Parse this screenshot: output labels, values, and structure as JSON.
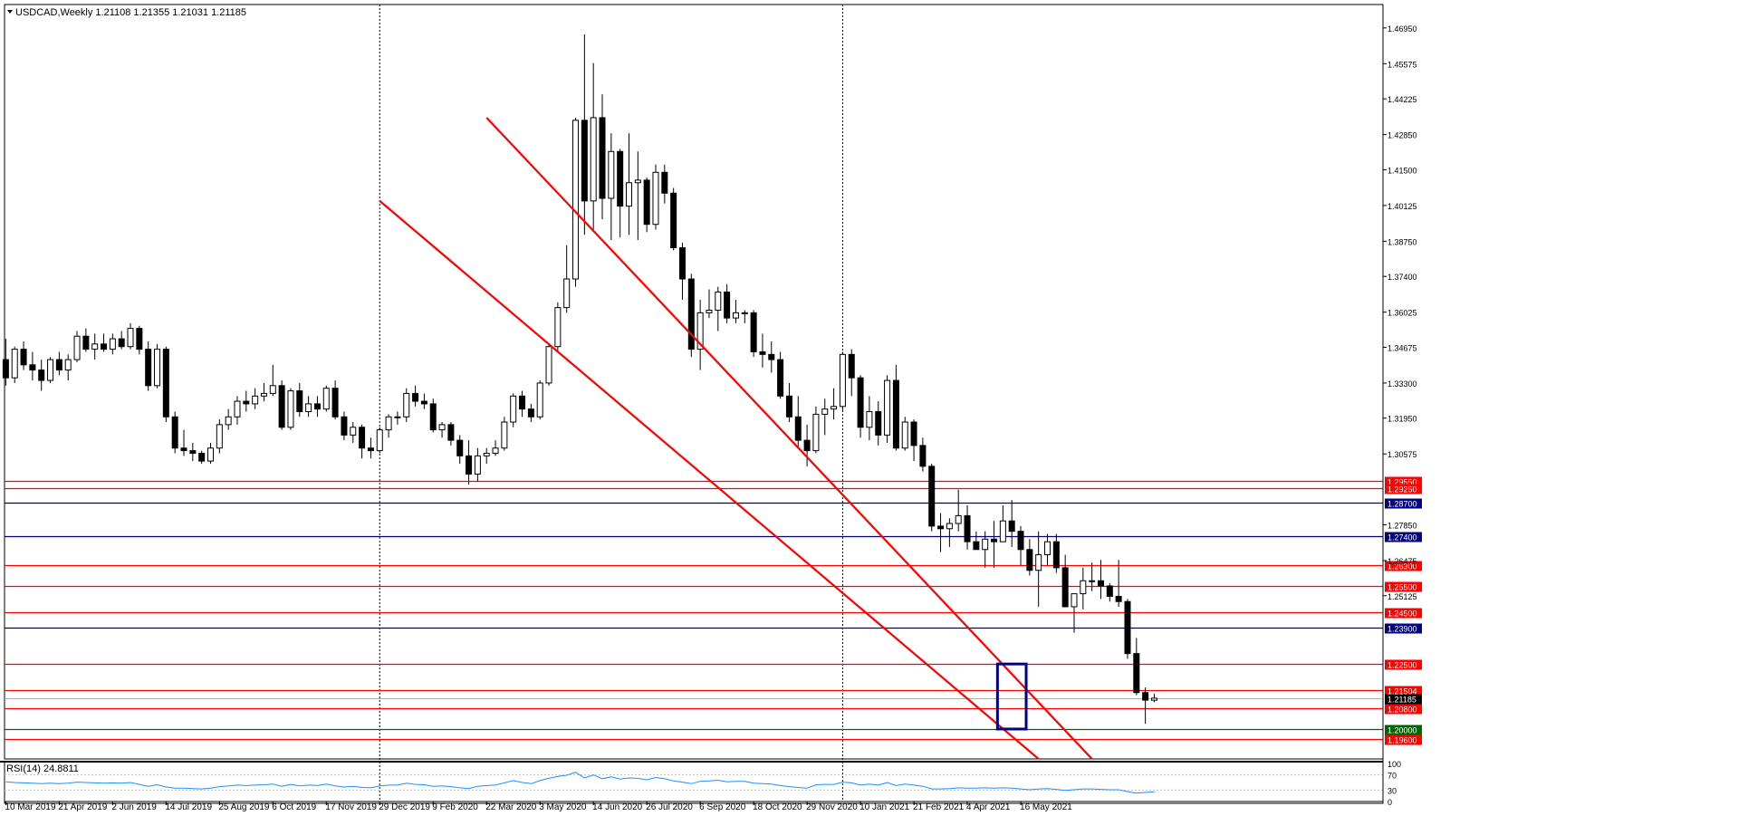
{
  "header": {
    "symbol_line": "USDCAD,Weekly  1.21108 1.21355 1.21031 1.21185"
  },
  "rsi": {
    "label": "RSI(14) 24.8811",
    "levels": [
      "100",
      "70",
      "30",
      "0"
    ]
  },
  "colors": {
    "red": "#ff0000",
    "blue": "#000080",
    "green": "#006400",
    "rsi": "#1e90ff",
    "bull": "#ffffff",
    "bear": "#000000"
  },
  "chart_data": {
    "type": "candlestick",
    "title": "USDCAD,Weekly",
    "ylim": [
      1.1885,
      1.4785
    ],
    "ylabels": [
      "1.46950",
      "1.45575",
      "1.44225",
      "1.42850",
      "1.41500",
      "1.40125",
      "1.38750",
      "1.37400",
      "1.36025",
      "1.34675",
      "1.33300",
      "1.31950",
      "1.30575",
      "1.27850",
      "1.26475",
      "1.25125"
    ],
    "xlabels": [
      "10 Mar 2019",
      "21 Apr 2019",
      "2 Jun 2019",
      "14 Jul 2019",
      "25 Aug 2019",
      "6 Oct 2019",
      "17 Nov 2019",
      "29 Dec 2019",
      "9 Feb 2020",
      "22 Mar 2020",
      "3 May 2020",
      "14 Jun 2020",
      "26 Jul 2020",
      "6 Sep 2020",
      "18 Oct 2020",
      "29 Nov 2020",
      "10 Jan 2021",
      "21 Feb 2021",
      "4 Apr 2021",
      "16 May 2021"
    ],
    "date_range": [
      "2019-03-10",
      "2021-05-16"
    ],
    "levels": [
      {
        "value": 1.2955,
        "label": "1.29550",
        "color": "red"
      },
      {
        "value": 1.2925,
        "label": "1.29250",
        "color": "red"
      },
      {
        "value": 1.287,
        "label": "1.28700",
        "color": "blue"
      },
      {
        "value": 1.274,
        "label": "1.27400",
        "color": "blue"
      },
      {
        "value": 1.263,
        "label": "1.26300",
        "color": "red"
      },
      {
        "value": 1.255,
        "label": "1.25500",
        "color": "red"
      },
      {
        "value": 1.245,
        "label": "1.24500",
        "color": "red"
      },
      {
        "value": 1.239,
        "label": "1.23900",
        "color": "blue"
      },
      {
        "value": 1.225,
        "label": "1.22500",
        "color": "red"
      },
      {
        "value": 1.215,
        "label": "1.21504",
        "color": "red"
      },
      {
        "value": 1.208,
        "label": "1.20800",
        "color": "red"
      },
      {
        "value": 1.2,
        "label": "1.20000",
        "color": "green"
      },
      {
        "value": 1.196,
        "label": "1.19600",
        "color": "red"
      }
    ],
    "current_price": {
      "value": 1.21185,
      "label": "1.21185"
    },
    "channel_lines": [
      {
        "from": {
          "date": "2020-03-22",
          "price": 1.435
        },
        "to": {
          "date": "2021-07-11",
          "price": 1.1885
        }
      },
      {
        "from": {
          "date": "2019-12-29",
          "price": 1.403
        },
        "to": {
          "date": "2021-05-30",
          "price": 1.1885
        }
      }
    ],
    "highlight_box": {
      "from": "2021-05-02",
      "to": "2021-05-16",
      "high": 1.225,
      "low": 1.2
    },
    "period_separators": [
      "2019-12-29",
      "2020-12-27"
    ],
    "candles": [
      [
        1.342,
        1.35,
        1.332,
        1.335
      ],
      [
        1.335,
        1.347,
        1.333,
        1.346
      ],
      [
        1.346,
        1.349,
        1.338,
        1.34
      ],
      [
        1.34,
        1.345,
        1.334,
        1.338
      ],
      [
        1.338,
        1.342,
        1.33,
        1.334
      ],
      [
        1.334,
        1.343,
        1.333,
        1.342
      ],
      [
        1.342,
        1.345,
        1.336,
        1.338
      ],
      [
        1.338,
        1.344,
        1.334,
        1.342
      ],
      [
        1.342,
        1.353,
        1.341,
        1.351
      ],
      [
        1.351,
        1.354,
        1.345,
        1.346
      ],
      [
        1.346,
        1.352,
        1.342,
        1.348
      ],
      [
        1.348,
        1.352,
        1.345,
        1.346
      ],
      [
        1.346,
        1.352,
        1.344,
        1.35
      ],
      [
        1.35,
        1.353,
        1.346,
        1.347
      ],
      [
        1.347,
        1.356,
        1.346,
        1.354
      ],
      [
        1.354,
        1.355,
        1.344,
        1.346
      ],
      [
        1.346,
        1.349,
        1.33,
        1.332
      ],
      [
        1.332,
        1.348,
        1.331,
        1.346
      ],
      [
        1.346,
        1.347,
        1.318,
        1.32
      ],
      [
        1.32,
        1.322,
        1.306,
        1.308
      ],
      [
        1.308,
        1.315,
        1.305,
        1.307
      ],
      [
        1.307,
        1.31,
        1.303,
        1.306
      ],
      [
        1.306,
        1.307,
        1.302,
        1.303
      ],
      [
        1.303,
        1.31,
        1.302,
        1.308
      ],
      [
        1.308,
        1.319,
        1.306,
        1.317
      ],
      [
        1.317,
        1.323,
        1.315,
        1.32
      ],
      [
        1.32,
        1.328,
        1.317,
        1.326
      ],
      [
        1.326,
        1.33,
        1.322,
        1.325
      ],
      [
        1.325,
        1.331,
        1.323,
        1.328
      ],
      [
        1.328,
        1.333,
        1.326,
        1.329
      ],
      [
        1.329,
        1.34,
        1.328,
        1.332
      ],
      [
        1.332,
        1.334,
        1.315,
        1.316
      ],
      [
        1.316,
        1.331,
        1.315,
        1.33
      ],
      [
        1.33,
        1.333,
        1.32,
        1.322
      ],
      [
        1.322,
        1.328,
        1.32,
        1.325
      ],
      [
        1.325,
        1.328,
        1.32,
        1.323
      ],
      [
        1.323,
        1.332,
        1.322,
        1.331
      ],
      [
        1.331,
        1.334,
        1.319,
        1.32
      ],
      [
        1.32,
        1.322,
        1.311,
        1.313
      ],
      [
        1.313,
        1.318,
        1.31,
        1.316
      ],
      [
        1.316,
        1.317,
        1.304,
        1.308
      ],
      [
        1.308,
        1.312,
        1.304,
        1.307
      ],
      [
        1.307,
        1.316,
        1.306,
        1.315
      ],
      [
        1.315,
        1.321,
        1.312,
        1.32
      ],
      [
        1.32,
        1.322,
        1.317,
        1.32
      ],
      [
        1.32,
        1.331,
        1.318,
        1.329
      ],
      [
        1.329,
        1.332,
        1.324,
        1.326
      ],
      [
        1.326,
        1.329,
        1.323,
        1.325
      ],
      [
        1.325,
        1.327,
        1.314,
        1.315
      ],
      [
        1.315,
        1.318,
        1.312,
        1.317
      ],
      [
        1.317,
        1.318,
        1.309,
        1.311
      ],
      [
        1.311,
        1.313,
        1.302,
        1.305
      ],
      [
        1.305,
        1.311,
        1.294,
        1.298
      ],
      [
        1.298,
        1.308,
        1.295,
        1.305
      ],
      [
        1.305,
        1.308,
        1.302,
        1.306
      ],
      [
        1.306,
        1.311,
        1.305,
        1.308
      ],
      [
        1.308,
        1.32,
        1.307,
        1.318
      ],
      [
        1.318,
        1.329,
        1.316,
        1.328
      ],
      [
        1.328,
        1.33,
        1.32,
        1.323
      ],
      [
        1.323,
        1.325,
        1.318,
        1.32
      ],
      [
        1.32,
        1.334,
        1.319,
        1.333
      ],
      [
        1.333,
        1.348,
        1.332,
        1.347
      ],
      [
        1.347,
        1.364,
        1.345,
        1.362
      ],
      [
        1.362,
        1.386,
        1.36,
        1.373
      ],
      [
        1.373,
        1.435,
        1.37,
        1.434
      ],
      [
        1.434,
        1.467,
        1.39,
        1.403
      ],
      [
        1.403,
        1.456,
        1.392,
        1.435
      ],
      [
        1.435,
        1.444,
        1.396,
        1.404
      ],
      [
        1.404,
        1.429,
        1.388,
        1.422
      ],
      [
        1.422,
        1.423,
        1.389,
        1.401
      ],
      [
        1.401,
        1.429,
        1.39,
        1.41
      ],
      [
        1.41,
        1.422,
        1.388,
        1.411
      ],
      [
        1.411,
        1.412,
        1.391,
        1.394
      ],
      [
        1.394,
        1.417,
        1.392,
        1.414
      ],
      [
        1.414,
        1.417,
        1.402,
        1.406
      ],
      [
        1.406,
        1.408,
        1.384,
        1.385
      ],
      [
        1.385,
        1.387,
        1.365,
        1.373
      ],
      [
        1.373,
        1.375,
        1.343,
        1.346
      ],
      [
        1.346,
        1.365,
        1.338,
        1.36
      ],
      [
        1.36,
        1.369,
        1.358,
        1.361
      ],
      [
        1.361,
        1.37,
        1.353,
        1.368
      ],
      [
        1.368,
        1.371,
        1.356,
        1.358
      ],
      [
        1.358,
        1.365,
        1.356,
        1.36
      ],
      [
        1.36,
        1.361,
        1.356,
        1.36
      ],
      [
        1.36,
        1.361,
        1.343,
        1.345
      ],
      [
        1.345,
        1.352,
        1.339,
        1.344
      ],
      [
        1.344,
        1.349,
        1.337,
        1.342
      ],
      [
        1.342,
        1.345,
        1.327,
        1.328
      ],
      [
        1.328,
        1.333,
        1.318,
        1.32
      ],
      [
        1.32,
        1.328,
        1.308,
        1.311
      ],
      [
        1.311,
        1.317,
        1.301,
        1.307
      ],
      [
        1.307,
        1.324,
        1.306,
        1.321
      ],
      [
        1.321,
        1.327,
        1.313,
        1.323
      ],
      [
        1.323,
        1.331,
        1.319,
        1.324
      ],
      [
        1.324,
        1.345,
        1.322,
        1.344
      ],
      [
        1.344,
        1.346,
        1.328,
        1.335
      ],
      [
        1.335,
        1.336,
        1.312,
        1.316
      ],
      [
        1.316,
        1.328,
        1.311,
        1.322
      ],
      [
        1.322,
        1.326,
        1.309,
        1.313
      ],
      [
        1.313,
        1.336,
        1.31,
        1.334
      ],
      [
        1.334,
        1.34,
        1.307,
        1.308
      ],
      [
        1.308,
        1.32,
        1.307,
        1.318
      ],
      [
        1.318,
        1.319,
        1.303,
        1.309
      ],
      [
        1.309,
        1.312,
        1.299,
        1.301
      ],
      [
        1.301,
        1.302,
        1.276,
        1.278
      ],
      [
        1.278,
        1.283,
        1.268,
        1.277
      ],
      [
        1.277,
        1.281,
        1.27,
        1.279
      ],
      [
        1.279,
        1.292,
        1.276,
        1.282
      ],
      [
        1.282,
        1.286,
        1.269,
        1.272
      ],
      [
        1.272,
        1.276,
        1.269,
        1.269
      ],
      [
        1.269,
        1.276,
        1.262,
        1.273
      ],
      [
        1.273,
        1.28,
        1.262,
        1.272
      ],
      [
        1.272,
        1.286,
        1.272,
        1.28
      ],
      [
        1.28,
        1.288,
        1.27,
        1.276
      ],
      [
        1.276,
        1.278,
        1.263,
        1.269
      ],
      [
        1.269,
        1.273,
        1.259,
        1.261
      ],
      [
        1.261,
        1.276,
        1.247,
        1.267
      ],
      [
        1.267,
        1.275,
        1.263,
        1.272
      ],
      [
        1.272,
        1.275,
        1.26,
        1.262
      ],
      [
        1.262,
        1.267,
        1.247,
        1.247
      ],
      [
        1.247,
        1.252,
        1.237,
        1.252
      ],
      [
        1.252,
        1.262,
        1.246,
        1.257
      ],
      [
        1.257,
        1.264,
        1.253,
        1.257
      ],
      [
        1.257,
        1.265,
        1.25,
        1.255
      ],
      [
        1.255,
        1.256,
        1.249,
        1.251
      ],
      [
        1.251,
        1.265,
        1.247,
        1.249
      ],
      [
        1.249,
        1.25,
        1.227,
        1.229
      ],
      [
        1.229,
        1.235,
        1.213,
        1.214
      ],
      [
        1.214,
        1.216,
        1.202,
        1.2111
      ],
      [
        1.21108,
        1.21355,
        1.21031,
        1.21185
      ]
    ],
    "rsi_values": [
      52,
      50,
      49,
      48,
      47,
      48,
      47,
      48,
      51,
      50,
      49,
      48,
      49,
      48,
      50,
      45,
      40,
      44,
      38,
      35,
      35,
      34,
      33,
      35,
      39,
      41,
      43,
      42,
      43,
      44,
      46,
      40,
      45,
      41,
      43,
      42,
      46,
      41,
      38,
      40,
      37,
      36,
      41,
      43,
      43,
      48,
      45,
      44,
      40,
      41,
      39,
      36,
      34,
      40,
      42,
      43,
      49,
      55,
      50,
      47,
      55,
      61,
      66,
      69,
      77,
      62,
      70,
      60,
      65,
      59,
      62,
      61,
      57,
      63,
      60,
      54,
      51,
      47,
      53,
      54,
      56,
      52,
      53,
      53,
      48,
      47,
      46,
      42,
      39,
      37,
      35,
      44,
      45,
      45,
      51,
      49,
      43,
      46,
      43,
      50,
      42,
      46,
      43,
      40,
      33,
      33,
      34,
      36,
      35,
      35,
      36,
      35,
      36,
      35,
      33,
      31,
      33,
      34,
      32,
      29,
      31,
      33,
      33,
      32,
      31,
      31,
      26,
      22,
      24,
      25
    ]
  }
}
